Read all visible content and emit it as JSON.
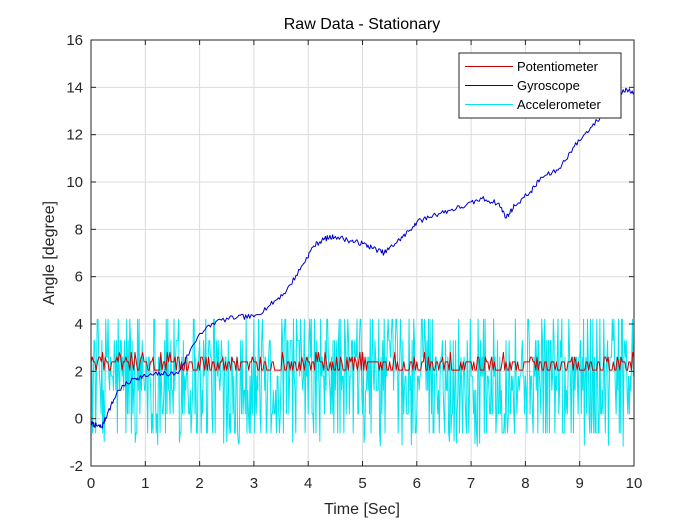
{
  "chart_data": {
    "type": "line",
    "title": "Raw Data - Stationary",
    "xlabel": "Time [Sec]",
    "ylabel": "Angle [degree]",
    "xlim": [
      0,
      10
    ],
    "ylim": [
      -2,
      16
    ],
    "xticks": [
      "0",
      "1",
      "2",
      "3",
      "4",
      "5",
      "6",
      "7",
      "8",
      "9",
      "10"
    ],
    "yticks": [
      "-2",
      "0",
      "2",
      "4",
      "6",
      "8",
      "10",
      "12",
      "14",
      "16"
    ],
    "grid": true,
    "legend_position": "top-right",
    "series": [
      {
        "name": "Potentiometer",
        "color": "#cc0000",
        "pattern": "noise",
        "levels": [
          2.05,
          2.4,
          2.6,
          2.8
        ],
        "samples": 420,
        "x": [
          0,
          10
        ],
        "y_range": [
          2.0,
          2.85
        ]
      },
      {
        "name": "Gyroscope",
        "color": "#0000cc",
        "pattern": "drift",
        "x": [
          0,
          0.1,
          0.2,
          0.3,
          0.5,
          0.8,
          1.0,
          1.3,
          1.6,
          2.0,
          2.3,
          2.7,
          3.0,
          3.3,
          3.6,
          3.9,
          4.1,
          4.3,
          4.5,
          4.8,
          5.0,
          5.2,
          5.4,
          5.6,
          5.8,
          6.0,
          6.3,
          6.6,
          6.9,
          7.2,
          7.5,
          7.65,
          7.8,
          8.1,
          8.3,
          8.6,
          8.9,
          9.2,
          9.5,
          9.8,
          10.0
        ],
        "y": [
          -0.2,
          -0.3,
          -0.35,
          0.2,
          1.2,
          1.7,
          1.8,
          1.9,
          1.9,
          3.6,
          4.1,
          4.3,
          4.3,
          4.8,
          5.4,
          6.5,
          7.3,
          7.6,
          7.7,
          7.5,
          7.4,
          7.2,
          7.0,
          7.4,
          7.8,
          8.3,
          8.6,
          8.8,
          9.0,
          9.3,
          9.1,
          8.5,
          9.0,
          9.6,
          10.2,
          10.5,
          11.5,
          12.3,
          13.0,
          13.9,
          13.8
        ]
      },
      {
        "name": "Accelerometer",
        "color": "#00e5ee",
        "pattern": "noise",
        "levels": [
          -0.6,
          0.2,
          1.2,
          1.8,
          2.6,
          3.3,
          4.2
        ],
        "samples": 700,
        "x": [
          0,
          10
        ],
        "y_range": [
          -1.2,
          4.3
        ]
      }
    ]
  }
}
